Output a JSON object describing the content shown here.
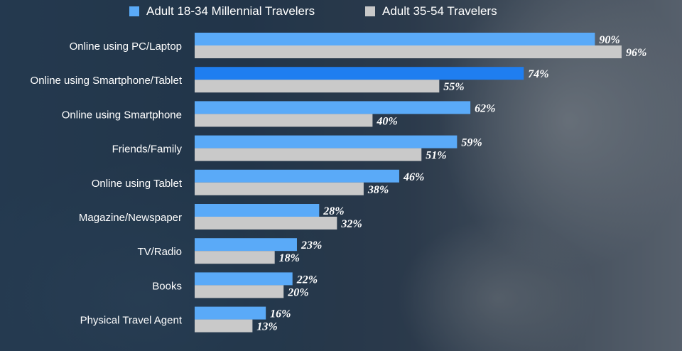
{
  "chart_data": {
    "type": "bar",
    "orientation": "horizontal",
    "categories": [
      "Online using PC/Laptop",
      "Online using Smartphone/Tablet",
      "Online using Smartphone",
      "Friends/Family",
      "Online using Tablet",
      "Magazine/Newspaper",
      "TV/Radio",
      "Books",
      "Physical Travel Agent"
    ],
    "series": [
      {
        "name": "Adult 18-34 Millennial Travelers",
        "color": "#5aaaf8",
        "values": [
          90,
          74,
          62,
          59,
          46,
          28,
          23,
          22,
          16
        ]
      },
      {
        "name": "Adult 35-54 Travelers",
        "color": "#c9c9c9",
        "values": [
          96,
          55,
          40,
          51,
          38,
          32,
          18,
          20,
          13
        ]
      }
    ],
    "highlight": {
      "category_index": 1,
      "series_index": 0,
      "color": "#1f7ef0"
    },
    "value_suffix": "%",
    "xlim": [
      0,
      100
    ],
    "grid": false,
    "legend_position": "top"
  }
}
